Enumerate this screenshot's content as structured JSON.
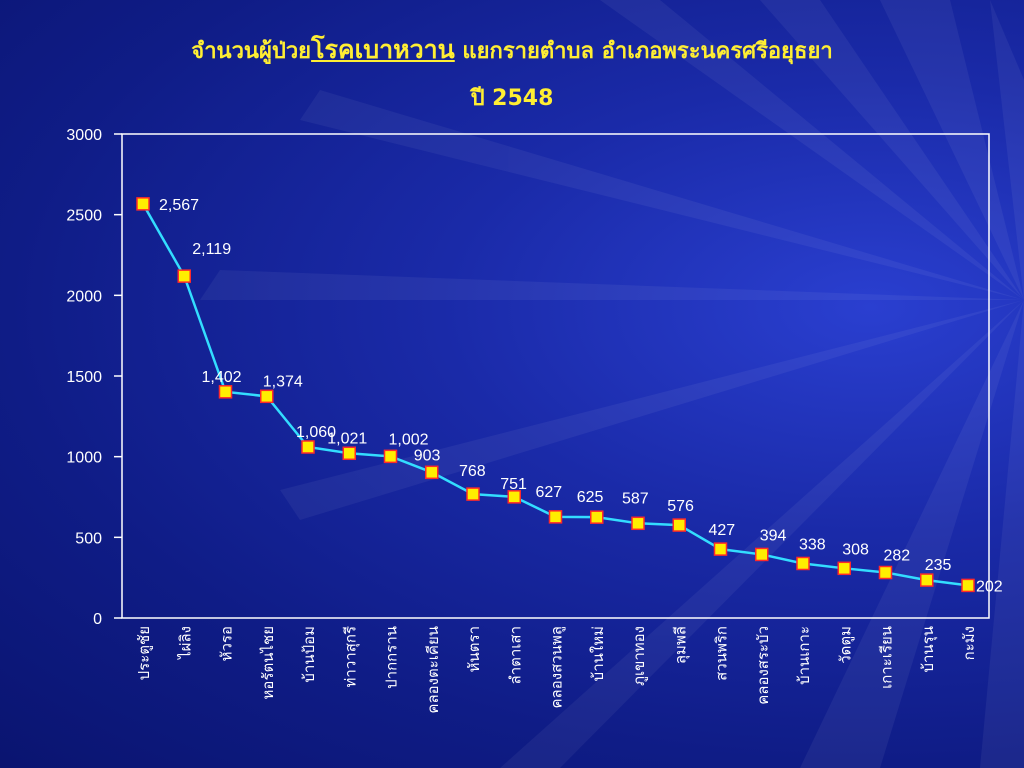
{
  "title": {
    "part1": "จำนวนผู้ป่วย",
    "part2": "โรคเบาหวาน",
    "part3": " แยกรายตำบล อำเภอพระนครศรีอยุธยา",
    "line2": "ปี 2548"
  },
  "colors": {
    "title": "#ffee33",
    "line": "#33ddff",
    "marker_fill": "#ffee00",
    "marker_stroke": "#ff2a2a",
    "axis": "#ffffff"
  },
  "chart_data": {
    "type": "line",
    "title": "จำนวนผู้ป่วยโรคเบาหวาน แยกรายตำบล อำเภอพระนครศรีอยุธยา ปี 2548",
    "xlabel": "",
    "ylabel": "",
    "ylim": [
      0,
      3000
    ],
    "yticks": [
      "0",
      "500",
      "1000",
      "1500",
      "2000",
      "2500",
      "3000"
    ],
    "grid": false,
    "legend": "none",
    "categories": [
      "ประตูชัย",
      "ไผ่ลิง",
      "หัวรอ",
      "หอรัตนไชย",
      "บ้านป้อม",
      "ท่าวาสุกรี",
      "ปากกราน",
      "คลองตะเคียน",
      "หันตรา",
      "ลำตาเสา",
      "คลองสวนพลู",
      "บ้านใหม่",
      "ภูเขาทอง",
      "ลุมพลี",
      "สวนพริก",
      "คลองสระบัว",
      "บ้านเกาะ",
      "วัดตูม",
      "เกาะเรียน",
      "บ้านรุน",
      "กะมัง"
    ],
    "values": [
      2567,
      2119,
      1402,
      1374,
      1060,
      1021,
      1002,
      903,
      768,
      751,
      627,
      625,
      587,
      576,
      427,
      394,
      338,
      308,
      282,
      235,
      202
    ],
    "data_labels": [
      "2,567",
      "2,119",
      "1,402",
      "1,374",
      "1,060",
      "1,021",
      "1,002",
      "903",
      "768",
      "751",
      "627",
      "625",
      "587",
      "576",
      "427",
      "394",
      "338",
      "308",
      "282",
      "235",
      "202"
    ]
  }
}
